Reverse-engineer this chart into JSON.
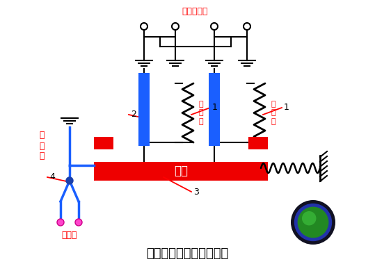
{
  "title": "热继电器工作原理示意图",
  "title_fontsize": 13,
  "bg_color": "#ffffff",
  "label_jiedianji_dingzi": "接电机定子",
  "label_jiedianji_dingzi_color": "#ff0000",
  "label_reyuanjian_left": "热\n元\n件",
  "label_reyuanjian_right": "热\n元\n件",
  "label_reyuanjian_color": "#ff0000",
  "label_daobang": "导板",
  "label_daobang_color": "#ffffff",
  "label_jie_dianyuan": "接\n电\n源",
  "label_jie_dianyuan_color": "#ff0000",
  "label_jie_dianji": "接电机",
  "label_jie_dianji_color": "#ff0000",
  "blue_rect_color": "#1a5fff",
  "red_rect_color": "#ee0000",
  "black_color": "#000000",
  "blue_wire_color": "#1a5fff",
  "pink_dot_color": "#ff44cc",
  "dark_node_color": "#1a3faa",
  "arrow_color": "#ff0000",
  "button_outer_color": "#111122",
  "button_ring_color": "#2233aa",
  "button_inner_color": "#228822",
  "button_highlight_color": "#44cc44",
  "fig_w": 5.39,
  "fig_h": 3.8,
  "dpi": 100
}
